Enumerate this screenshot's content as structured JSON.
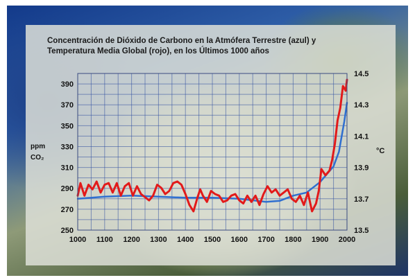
{
  "chart_data": {
    "type": "line",
    "title_line1": "Concentración de Dióxido de Carbono en la Atmófera Terrestre (azul) y",
    "title_line2": "Temperatura Media Global (rojo), en los Últimos 1000 años",
    "ylabel_left": "ppm CO₂",
    "ylabel_left_line1": "ppm",
    "ylabel_left_line2": "CO₂",
    "ylabel_right": "°C",
    "xlim": [
      1000,
      2000
    ],
    "ylim_left": [
      250,
      400
    ],
    "ylim_right": [
      13.5,
      14.5
    ],
    "x_ticks": [
      1000,
      1100,
      1200,
      1300,
      1400,
      1500,
      1600,
      1700,
      1800,
      1900,
      2000
    ],
    "y_ticks_left": [
      250,
      270,
      290,
      310,
      330,
      350,
      370,
      390
    ],
    "y_ticks_right": [
      "13.5",
      "13.7",
      "13.9",
      "14.1",
      "14.3",
      "14.5"
    ],
    "grid": true,
    "series": [
      {
        "color": "#2f6fd0",
        "axis": "left",
        "x": [
          1000,
          1100,
          1200,
          1300,
          1400,
          1500,
          1600,
          1700,
          1750,
          1800,
          1850,
          1900,
          1950,
          1970,
          1990,
          2000
        ],
        "values": [
          280,
          282,
          283,
          282,
          281,
          281,
          280,
          277,
          278,
          283,
          286,
          296,
          311,
          325,
          354,
          372
        ]
      },
      {
        "color": "#e21a1a",
        "axis": "right",
        "x": [
          1000,
          1010,
          1025,
          1040,
          1055,
          1070,
          1085,
          1100,
          1115,
          1130,
          1145,
          1160,
          1175,
          1190,
          1205,
          1220,
          1235,
          1250,
          1265,
          1280,
          1295,
          1310,
          1325,
          1340,
          1355,
          1370,
          1385,
          1400,
          1415,
          1430,
          1445,
          1455,
          1465,
          1480,
          1495,
          1510,
          1525,
          1540,
          1555,
          1570,
          1585,
          1600,
          1615,
          1630,
          1645,
          1660,
          1675,
          1690,
          1705,
          1720,
          1735,
          1750,
          1765,
          1780,
          1795,
          1810,
          1825,
          1840,
          1855,
          1870,
          1885,
          1895,
          1905,
          1920,
          1935,
          1945,
          1955,
          1965,
          1975,
          1985,
          1995,
          2000
        ],
        "values": [
          13.72,
          13.8,
          13.72,
          13.79,
          13.76,
          13.81,
          13.74,
          13.79,
          13.8,
          13.74,
          13.8,
          13.72,
          13.78,
          13.8,
          13.72,
          13.78,
          13.73,
          13.71,
          13.69,
          13.72,
          13.79,
          13.77,
          13.73,
          13.75,
          13.8,
          13.81,
          13.79,
          13.73,
          13.66,
          13.62,
          13.71,
          13.76,
          13.72,
          13.68,
          13.75,
          13.73,
          13.72,
          13.68,
          13.69,
          13.72,
          13.73,
          13.69,
          13.67,
          13.72,
          13.68,
          13.72,
          13.66,
          13.73,
          13.78,
          13.74,
          13.76,
          13.72,
          13.74,
          13.76,
          13.7,
          13.68,
          13.72,
          13.66,
          13.74,
          13.62,
          13.67,
          13.75,
          13.89,
          13.85,
          13.88,
          13.95,
          14.05,
          14.2,
          14.28,
          14.42,
          14.39,
          14.46
        ]
      }
    ]
  }
}
